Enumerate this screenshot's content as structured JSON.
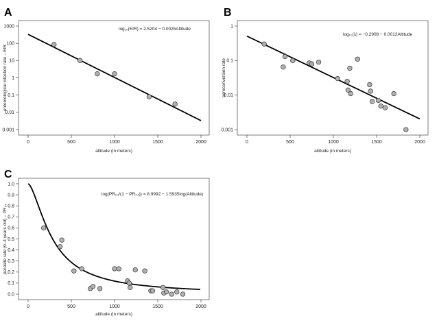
{
  "chart_data": [
    {
      "panel": "A",
      "type": "scatter",
      "y_scale": "log",
      "xlabel": "altitude (in meters)",
      "ylabel": "entomological infection rate – EIR",
      "xlim": [
        0,
        2000
      ],
      "ylim": [
        0.001,
        1000
      ],
      "x_ticks": [
        0,
        500,
        1000,
        1500,
        2000
      ],
      "y_ticks": [
        0.001,
        0.01,
        0.1,
        1,
        10,
        100,
        1000
      ],
      "y_tick_labels": [
        "0.001",
        "0.01",
        "0.1",
        "1",
        "10",
        "100",
        "1000"
      ],
      "equation": "log₁₀(EIR) = 2.5204 − 0.0025Altitude",
      "fit": {
        "kind": "log10-linear",
        "intercept": 2.5204,
        "slope": -0.0025
      },
      "points": {
        "x": [
          300,
          600,
          800,
          1000,
          1400,
          1700
        ],
        "y": [
          85,
          10,
          1.7,
          1.7,
          0.08,
          0.03
        ]
      },
      "grid": false
    },
    {
      "panel": "B",
      "type": "scatter",
      "y_scale": "log",
      "xlabel": "altitude (in meters)",
      "ylabel": "seroconversion rate",
      "xlim": [
        0,
        2000
      ],
      "ylim": [
        0.001,
        1
      ],
      "x_ticks": [
        0,
        500,
        1000,
        1500,
        2000
      ],
      "y_ticks": [
        0.001,
        0.01,
        0.1,
        1
      ],
      "y_tick_labels": [
        "0.001",
        "0.01",
        "0.1",
        "1"
      ],
      "equation": "log₁₀(λ) = −0.2908 − 0.0012Altitude",
      "fit": {
        "kind": "log10-linear",
        "intercept": -0.2908,
        "slope": -0.0012
      },
      "points": {
        "x": [
          200,
          420,
          440,
          530,
          720,
          750,
          830,
          1050,
          1160,
          1170,
          1190,
          1200,
          1280,
          1420,
          1430,
          1450,
          1520,
          1550,
          1600,
          1700,
          1840
        ],
        "y": [
          0.3,
          0.065,
          0.13,
          0.1,
          0.085,
          0.08,
          0.09,
          0.03,
          0.025,
          0.014,
          0.06,
          0.011,
          0.11,
          0.02,
          0.013,
          0.0065,
          0.007,
          0.0048,
          0.0043,
          0.011,
          0.001
        ]
      },
      "grid": false
    },
    {
      "panel": "C",
      "type": "scatter",
      "y_scale": "linear",
      "xlabel": "altitude (in meters)",
      "ylabel": "parasite rate (0–4 years old) – PR₀₄",
      "xlim": [
        0,
        2000
      ],
      "ylim": [
        0,
        1
      ],
      "x_ticks": [
        0,
        500,
        1000,
        1500,
        2000
      ],
      "y_ticks": [
        0,
        0.1,
        0.2,
        0.3,
        0.4,
        0.5,
        0.6,
        0.7,
        0.8,
        0.9,
        1.0
      ],
      "y_tick_labels": [
        "0.0",
        "0.1",
        "0.2",
        "0.3",
        "0.4",
        "0.5",
        "0.6",
        "0.7",
        "0.8",
        "0.9",
        "1.0"
      ],
      "equation": "log(PR₀₄/(1 − PR₀₄)) = 8.9992 − 1.5935log(Altitude)",
      "fit": {
        "kind": "logit-loglinear",
        "intercept": 8.9992,
        "slope": -1.5935
      },
      "points": {
        "x": [
          180,
          370,
          390,
          530,
          620,
          720,
          750,
          830,
          1000,
          1050,
          1150,
          1170,
          1180,
          1240,
          1350,
          1420,
          1440,
          1560,
          1570,
          1600,
          1660,
          1720,
          1790
        ],
        "y": [
          0.6,
          0.43,
          0.49,
          0.21,
          0.23,
          0.05,
          0.07,
          0.05,
          0.23,
          0.23,
          0.12,
          0.1,
          0.06,
          0.22,
          0.21,
          0.03,
          0.03,
          0.06,
          0.01,
          0.02,
          0.0,
          0.02,
          0.0
        ]
      },
      "grid": false
    }
  ]
}
